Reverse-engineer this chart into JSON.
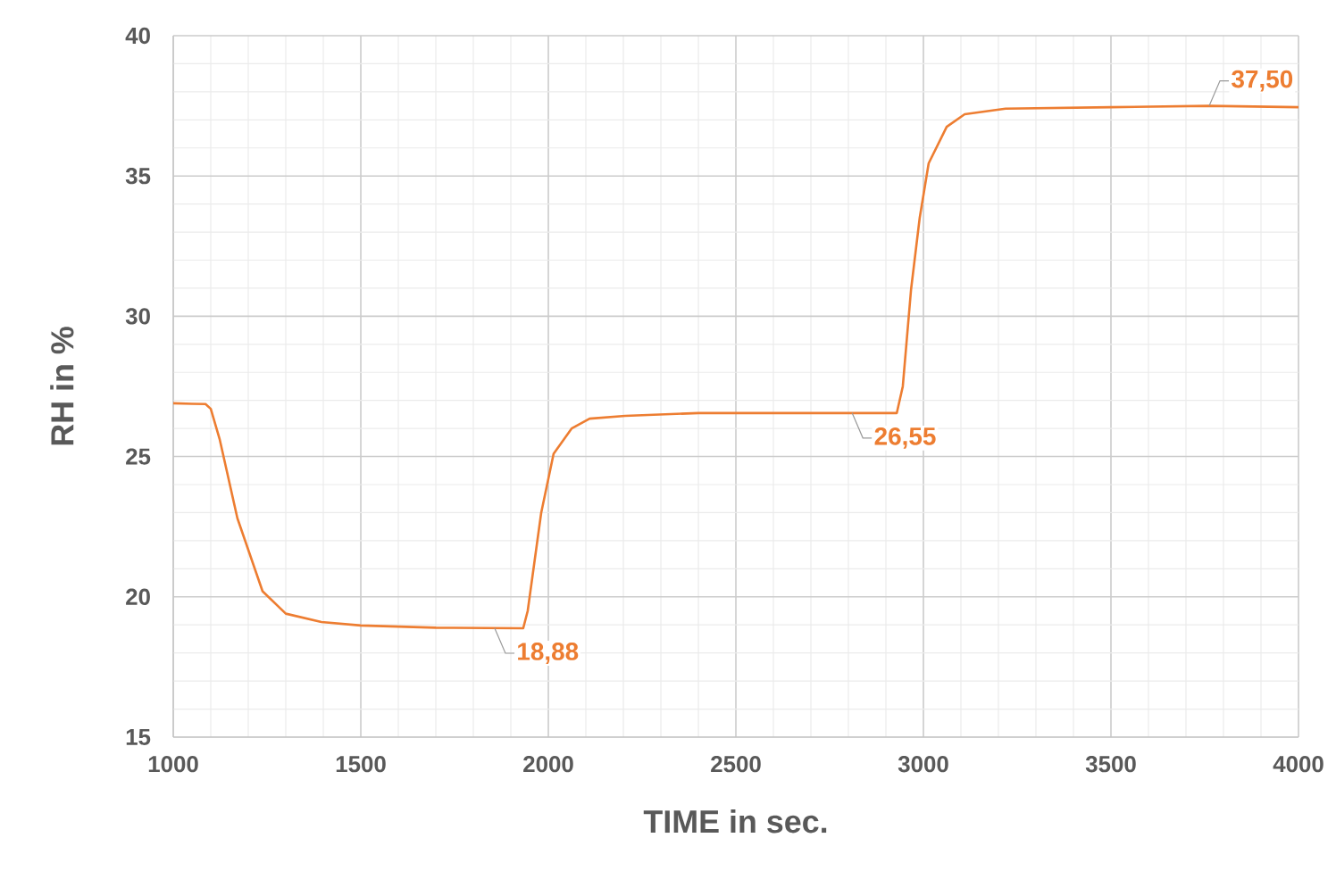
{
  "chart_data": {
    "type": "line",
    "xlabel": "TIME in sec.",
    "ylabel": "RH in %",
    "x": [
      1000,
      1050,
      1086,
      1100,
      1124,
      1171,
      1238,
      1300,
      1395,
      1500,
      1700,
      1933,
      1945,
      1981,
      2014,
      2062,
      2110,
      2205,
      2400,
      2700,
      2929,
      2945,
      2967,
      2990,
      3014,
      3062,
      3110,
      3219,
      3500,
      3762,
      4000
    ],
    "series": [
      {
        "color": "#ed7d31",
        "values": [
          26.9,
          26.88,
          26.87,
          26.7,
          25.6,
          22.8,
          20.2,
          19.4,
          19.1,
          18.98,
          18.9,
          18.88,
          19.5,
          23.0,
          25.1,
          26.0,
          26.35,
          26.45,
          26.55,
          26.55,
          26.55,
          27.5,
          30.95,
          33.5,
          35.45,
          36.75,
          37.2,
          37.4,
          37.45,
          37.5,
          37.45
        ]
      }
    ],
    "xlim": [
      1000,
      4000
    ],
    "ylim": [
      15,
      40
    ],
    "xticks": [
      1000,
      1500,
      2000,
      2500,
      3000,
      3500,
      4000
    ],
    "yticks": [
      15,
      20,
      25,
      30,
      35,
      40
    ],
    "grid": true,
    "line_style": "solid",
    "marker": "none",
    "annotations": [
      {
        "text": "18,88",
        "x": 1857,
        "y": 18.88
      },
      {
        "text": "26,55",
        "x": 2810,
        "y": 26.55
      },
      {
        "text": "37,50",
        "x": 3762,
        "y": 37.5
      }
    ]
  }
}
